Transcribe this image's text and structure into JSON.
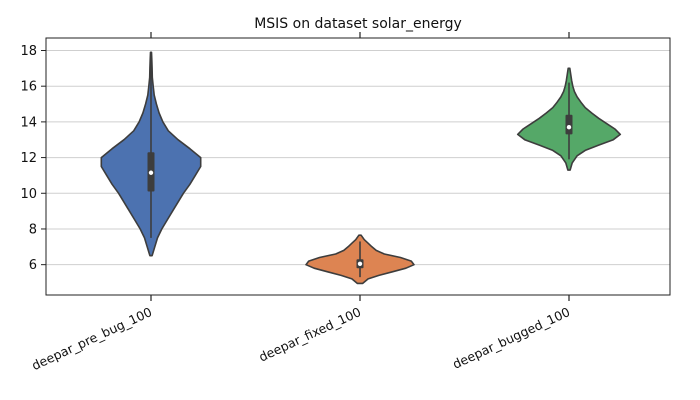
{
  "chart_data": {
    "type": "violin",
    "title": "MSIS on dataset solar_energy",
    "xlabel": "",
    "ylabel": "",
    "ylim": [
      4.3,
      18.7
    ],
    "yticks": [
      6,
      8,
      10,
      12,
      14,
      16,
      18
    ],
    "grid": "horizontal",
    "categories": [
      "deepar_pre_bug_100",
      "deepar_fixed_100",
      "deepar_bugged_100"
    ],
    "series": [
      {
        "color": "#4c72b0",
        "min": 6.5,
        "max": 17.9,
        "q1": 10.1,
        "median": 11.15,
        "q3": 12.3,
        "whisker_low": 7.5,
        "whisker_high": 17.8,
        "density": [
          [
            6.5,
            0.02
          ],
          [
            7.0,
            0.07
          ],
          [
            7.5,
            0.12
          ],
          [
            8.0,
            0.2
          ],
          [
            8.5,
            0.3
          ],
          [
            9.0,
            0.4
          ],
          [
            9.5,
            0.5
          ],
          [
            10.0,
            0.6
          ],
          [
            10.5,
            0.72
          ],
          [
            11.0,
            0.82
          ],
          [
            11.5,
            0.92
          ],
          [
            12.0,
            0.92
          ],
          [
            12.5,
            0.72
          ],
          [
            13.0,
            0.5
          ],
          [
            13.5,
            0.32
          ],
          [
            14.0,
            0.22
          ],
          [
            14.5,
            0.15
          ],
          [
            15.0,
            0.1
          ],
          [
            15.5,
            0.06
          ],
          [
            16.0,
            0.04
          ],
          [
            16.5,
            0.025
          ],
          [
            17.0,
            0.02
          ],
          [
            17.5,
            0.015
          ],
          [
            17.9,
            0.01
          ]
        ]
      },
      {
        "color": "#dd8452",
        "min": 4.95,
        "max": 7.65,
        "q1": 5.8,
        "median": 6.05,
        "q3": 6.3,
        "whisker_low": 5.3,
        "whisker_high": 7.3,
        "density": [
          [
            4.95,
            0.05
          ],
          [
            5.2,
            0.15
          ],
          [
            5.4,
            0.35
          ],
          [
            5.6,
            0.6
          ],
          [
            5.8,
            0.85
          ],
          [
            6.0,
            1.0
          ],
          [
            6.2,
            0.95
          ],
          [
            6.4,
            0.75
          ],
          [
            6.6,
            0.45
          ],
          [
            6.8,
            0.3
          ],
          [
            7.0,
            0.22
          ],
          [
            7.2,
            0.15
          ],
          [
            7.4,
            0.08
          ],
          [
            7.65,
            0.02
          ]
        ]
      },
      {
        "color": "#55a868",
        "min": 11.3,
        "max": 17.0,
        "q1": 13.3,
        "median": 13.7,
        "q3": 14.4,
        "whisker_low": 11.9,
        "whisker_high": 16.2,
        "density": [
          [
            11.3,
            0.02
          ],
          [
            11.7,
            0.06
          ],
          [
            12.1,
            0.15
          ],
          [
            12.4,
            0.3
          ],
          [
            12.7,
            0.55
          ],
          [
            13.0,
            0.82
          ],
          [
            13.3,
            0.95
          ],
          [
            13.6,
            0.85
          ],
          [
            13.9,
            0.7
          ],
          [
            14.2,
            0.55
          ],
          [
            14.5,
            0.42
          ],
          [
            14.8,
            0.3
          ],
          [
            15.1,
            0.22
          ],
          [
            15.4,
            0.15
          ],
          [
            15.7,
            0.1
          ],
          [
            16.0,
            0.07
          ],
          [
            16.3,
            0.05
          ],
          [
            16.6,
            0.035
          ],
          [
            17.0,
            0.015
          ]
        ]
      }
    ]
  }
}
